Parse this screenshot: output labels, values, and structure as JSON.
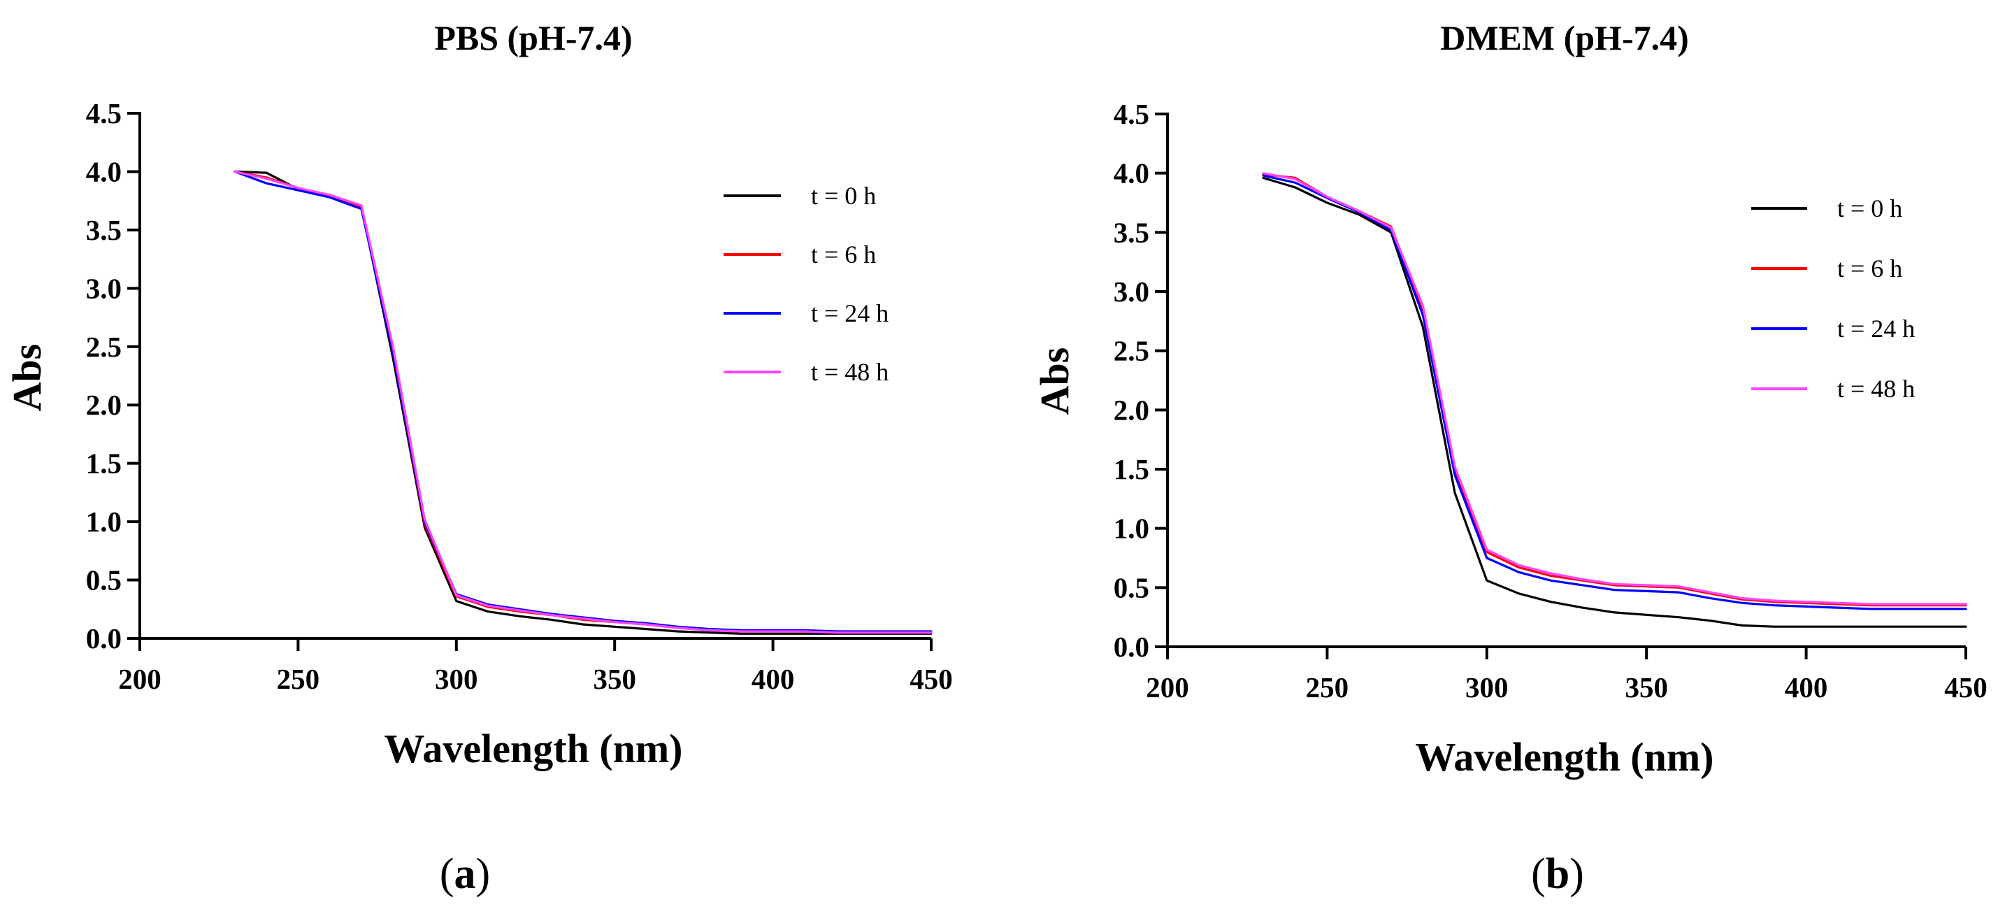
{
  "chart_data": [
    {
      "panel_label": "a",
      "type": "line",
      "title": "PBS (pH-7.4)",
      "xlabel": "Wavelength (nm)",
      "ylabel": "Abs",
      "xlim": [
        200,
        450
      ],
      "ylim": [
        0,
        4.5
      ],
      "xticks": [
        "200",
        "250",
        "300",
        "350",
        "400",
        "450"
      ],
      "yticks": [
        "0.0",
        "0.5",
        "1.0",
        "1.5",
        "2.0",
        "2.5",
        "3.0",
        "3.5",
        "4.0",
        "4.5"
      ],
      "legend_position": "top-right",
      "series": [
        {
          "name": "t = 0 h",
          "color": "#000000",
          "x": [
            230,
            240,
            250,
            260,
            270,
            280,
            290,
            300,
            310,
            320,
            330,
            340,
            350,
            360,
            370,
            380,
            390,
            400,
            410,
            420,
            430,
            440,
            450
          ],
          "y": [
            4.0,
            3.99,
            3.85,
            3.8,
            3.7,
            2.4,
            0.95,
            0.32,
            0.23,
            0.19,
            0.16,
            0.12,
            0.1,
            0.08,
            0.06,
            0.05,
            0.04,
            0.04,
            0.04,
            0.04,
            0.04,
            0.04,
            0.04
          ]
        },
        {
          "name": "t = 6 h",
          "color": "#ff0000",
          "x": [
            230,
            240,
            250,
            260,
            270,
            280,
            290,
            300,
            310,
            320,
            330,
            340,
            350,
            360,
            370,
            380,
            390,
            400,
            410,
            420,
            430,
            440,
            450
          ],
          "y": [
            4.0,
            3.95,
            3.86,
            3.79,
            3.69,
            2.45,
            0.98,
            0.36,
            0.27,
            0.23,
            0.2,
            0.16,
            0.14,
            0.12,
            0.09,
            0.07,
            0.06,
            0.06,
            0.06,
            0.05,
            0.05,
            0.05,
            0.05
          ]
        },
        {
          "name": "t = 24 h",
          "color": "#0000ff",
          "x": [
            230,
            240,
            250,
            260,
            270,
            280,
            290,
            300,
            310,
            320,
            330,
            340,
            350,
            360,
            370,
            380,
            390,
            400,
            410,
            420,
            430,
            440,
            450
          ],
          "y": [
            4.0,
            3.9,
            3.84,
            3.78,
            3.68,
            2.45,
            1.0,
            0.38,
            0.29,
            0.25,
            0.21,
            0.18,
            0.15,
            0.13,
            0.1,
            0.08,
            0.07,
            0.07,
            0.07,
            0.06,
            0.06,
            0.06,
            0.06
          ]
        },
        {
          "name": "t = 48 h",
          "color": "#ff44ff",
          "x": [
            230,
            240,
            250,
            260,
            270,
            280,
            290,
            300,
            310,
            320,
            330,
            340,
            350,
            360,
            370,
            380,
            390,
            400,
            410,
            420,
            430,
            440,
            450
          ],
          "y": [
            4.0,
            3.94,
            3.86,
            3.8,
            3.71,
            2.5,
            1.02,
            0.37,
            0.28,
            0.24,
            0.2,
            0.17,
            0.14,
            0.12,
            0.09,
            0.07,
            0.06,
            0.06,
            0.06,
            0.05,
            0.05,
            0.05,
            0.05
          ]
        }
      ]
    },
    {
      "panel_label": "b",
      "type": "line",
      "title": "DMEM (pH-7.4)",
      "xlabel": "Wavelength (nm)",
      "ylabel": "Abs",
      "xlim": [
        200,
        450
      ],
      "ylim": [
        0,
        4.5
      ],
      "xticks": [
        "200",
        "250",
        "300",
        "350",
        "400",
        "450"
      ],
      "yticks": [
        "0.0",
        "0.5",
        "1.0",
        "1.5",
        "2.0",
        "2.5",
        "3.0",
        "3.5",
        "4.0",
        "4.5"
      ],
      "legend_position": "top-right",
      "series": [
        {
          "name": "t = 0 h",
          "color": "#000000",
          "x": [
            230,
            240,
            250,
            260,
            270,
            280,
            290,
            300,
            310,
            320,
            330,
            340,
            350,
            360,
            370,
            380,
            390,
            400,
            410,
            420,
            430,
            440,
            450
          ],
          "y": [
            3.96,
            3.88,
            3.75,
            3.65,
            3.5,
            2.7,
            1.3,
            0.56,
            0.45,
            0.38,
            0.33,
            0.29,
            0.27,
            0.25,
            0.22,
            0.18,
            0.17,
            0.17,
            0.17,
            0.17,
            0.17,
            0.17,
            0.17
          ]
        },
        {
          "name": "t = 6 h",
          "color": "#ff0000",
          "x": [
            230,
            240,
            250,
            260,
            270,
            280,
            290,
            300,
            310,
            320,
            330,
            340,
            350,
            360,
            370,
            380,
            390,
            400,
            410,
            420,
            430,
            440,
            450
          ],
          "y": [
            3.99,
            3.96,
            3.8,
            3.68,
            3.55,
            2.85,
            1.5,
            0.8,
            0.67,
            0.6,
            0.56,
            0.52,
            0.51,
            0.5,
            0.45,
            0.4,
            0.38,
            0.37,
            0.36,
            0.35,
            0.35,
            0.35,
            0.35
          ]
        },
        {
          "name": "t = 24 h",
          "color": "#0000ff",
          "x": [
            230,
            240,
            250,
            260,
            270,
            280,
            290,
            300,
            310,
            320,
            330,
            340,
            350,
            360,
            370,
            380,
            390,
            400,
            410,
            420,
            430,
            440,
            450
          ],
          "y": [
            3.98,
            3.92,
            3.79,
            3.67,
            3.52,
            2.8,
            1.45,
            0.75,
            0.63,
            0.56,
            0.52,
            0.48,
            0.47,
            0.46,
            0.41,
            0.37,
            0.35,
            0.34,
            0.33,
            0.32,
            0.32,
            0.32,
            0.32
          ]
        },
        {
          "name": "t = 48 h",
          "color": "#ff44ff",
          "x": [
            230,
            240,
            250,
            260,
            270,
            280,
            290,
            300,
            310,
            320,
            330,
            340,
            350,
            360,
            370,
            380,
            390,
            400,
            410,
            420,
            430,
            440,
            450
          ],
          "y": [
            4.0,
            3.95,
            3.8,
            3.68,
            3.54,
            2.88,
            1.52,
            0.82,
            0.69,
            0.62,
            0.57,
            0.53,
            0.52,
            0.51,
            0.46,
            0.41,
            0.39,
            0.38,
            0.37,
            0.36,
            0.36,
            0.36,
            0.36
          ]
        }
      ]
    }
  ]
}
